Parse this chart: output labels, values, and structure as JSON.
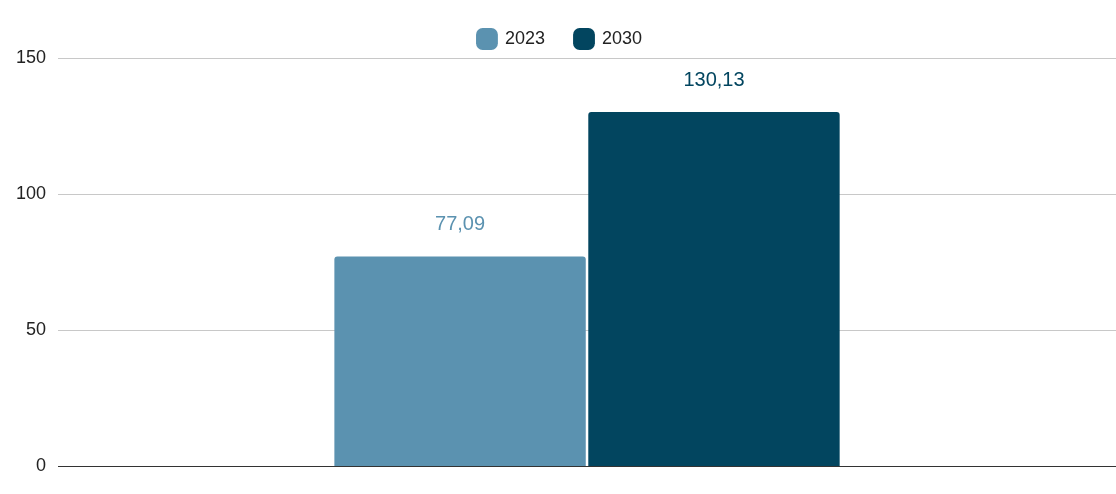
{
  "chart_data": {
    "type": "bar",
    "categories": [
      null
    ],
    "series": [
      {
        "name": "2023",
        "color": "#5b92b0",
        "values": [
          77.09
        ],
        "value_labels": [
          "77,09"
        ]
      },
      {
        "name": "2030",
        "color": "#02455f",
        "values": [
          130.13
        ],
        "value_labels": [
          "130,13"
        ]
      }
    ],
    "ylim": [
      0,
      150
    ],
    "yticks": [
      0,
      50,
      100,
      150
    ],
    "grid": "y",
    "legend": "top"
  }
}
